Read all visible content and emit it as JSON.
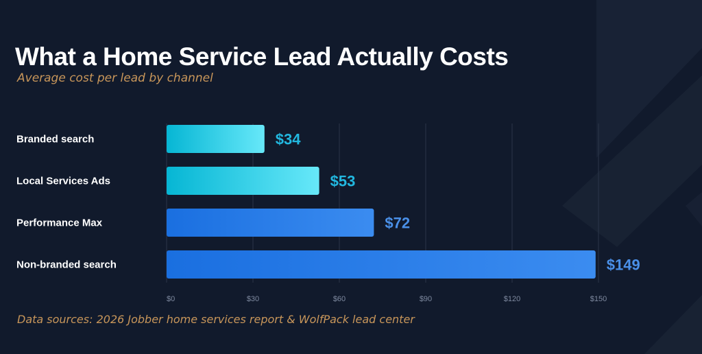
{
  "title": "What a Home Service Lead Actually Costs",
  "subtitle": "Average cost per lead by channel",
  "source": "Data sources: 2026 Jobber home services report & WolfPack lead center",
  "colors": {
    "background": "#111a2c",
    "accent_gold": "#c8965a",
    "cyan_bar_start": "#06b6d4",
    "cyan_bar_end": "#67e8f9",
    "blue_bar_start": "#1a6fe0",
    "blue_bar_end": "#3b8cf0",
    "cyan_label": "#22b8e0",
    "blue_label": "#4a90e8"
  },
  "chart_data": {
    "type": "bar",
    "orientation": "horizontal",
    "categories": [
      "Branded search",
      "Local Services Ads",
      "Performance Max",
      "Non-branded search"
    ],
    "values": [
      34,
      53,
      72,
      149
    ],
    "value_labels": [
      "$34",
      "$53",
      "$72",
      "$149"
    ],
    "bar_color_groups": [
      "cyan",
      "cyan",
      "blue",
      "blue"
    ],
    "x_ticks": [
      0,
      30,
      60,
      90,
      120,
      150
    ],
    "x_tick_labels": [
      "$0",
      "$30",
      "$60",
      "$90",
      "$120",
      "$150"
    ],
    "xlim": [
      0,
      150
    ],
    "grid": "vertical"
  }
}
